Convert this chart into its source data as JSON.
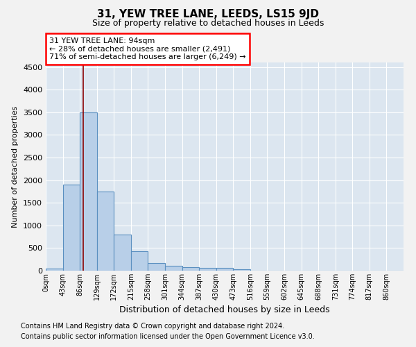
{
  "title": "31, YEW TREE LANE, LEEDS, LS15 9JD",
  "subtitle": "Size of property relative to detached houses in Leeds",
  "xlabel": "Distribution of detached houses by size in Leeds",
  "ylabel": "Number of detached properties",
  "bar_labels": [
    "0sqm",
    "43sqm",
    "86sqm",
    "129sqm",
    "172sqm",
    "215sqm",
    "258sqm",
    "301sqm",
    "344sqm",
    "387sqm",
    "430sqm",
    "473sqm",
    "516sqm",
    "559sqm",
    "602sqm",
    "645sqm",
    "688sqm",
    "731sqm",
    "774sqm",
    "817sqm",
    "860sqm"
  ],
  "bar_values": [
    50,
    1900,
    3500,
    1750,
    800,
    430,
    175,
    110,
    80,
    60,
    55,
    30,
    5,
    3,
    2,
    2,
    1,
    1,
    1,
    1,
    1
  ],
  "bar_color": "#b8cfe8",
  "bar_edge_color": "#5a8fc0",
  "background_color": "#dce6f0",
  "grid_color": "#ffffff",
  "annotation_line1": "31 YEW TREE LANE: 94sqm",
  "annotation_line2": "← 28% of detached houses are smaller (2,491)",
  "annotation_line3": "71% of semi-detached houses are larger (6,249) →",
  "red_line_x": 94,
  "bin_width": 43,
  "ylim": [
    0,
    4600
  ],
  "yticks": [
    0,
    500,
    1000,
    1500,
    2000,
    2500,
    3000,
    3500,
    4000,
    4500
  ],
  "fig_bg": "#f2f2f2",
  "footer_line1": "Contains HM Land Registry data © Crown copyright and database right 2024.",
  "footer_line2": "Contains public sector information licensed under the Open Government Licence v3.0."
}
